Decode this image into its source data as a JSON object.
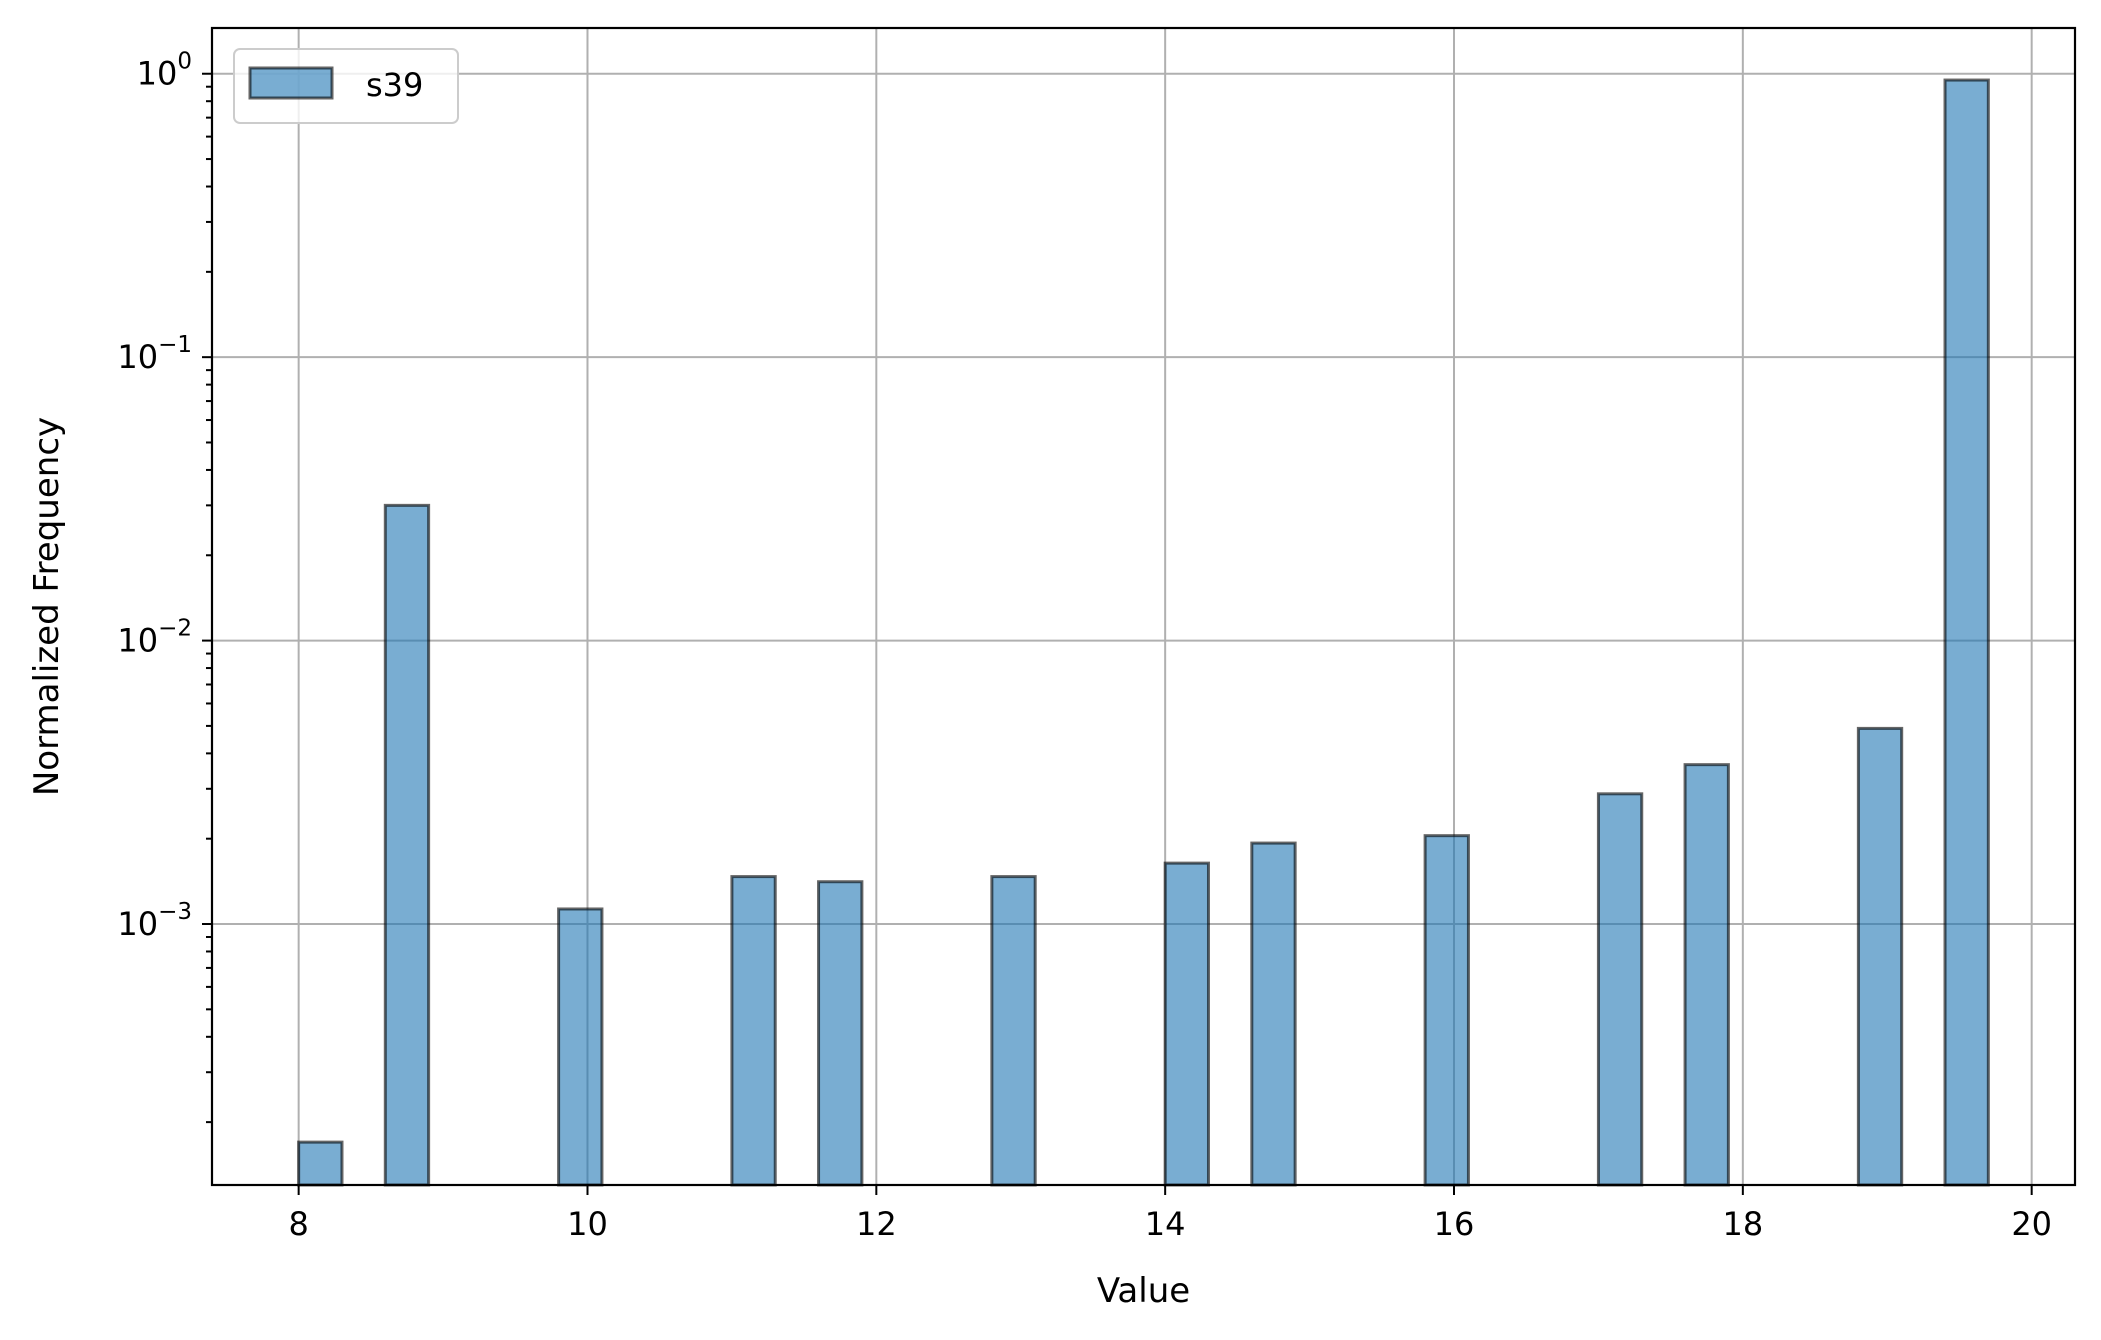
{
  "chart_data": {
    "type": "bar",
    "histogram": true,
    "xlabel": "Value",
    "ylabel": "Normalized Frequency",
    "yscale": "log",
    "xlim": [
      7.4,
      20.3
    ],
    "ylim": [
      0.00012,
      1.45
    ],
    "grid": true,
    "legend": {
      "placement": "top-left",
      "entries": [
        "s39"
      ]
    },
    "x_ticks": [
      "8",
      "10",
      "12",
      "14",
      "16",
      "18",
      "20"
    ],
    "x_tick_values": [
      8,
      10,
      12,
      14,
      16,
      18,
      20
    ],
    "y_ticks": [
      {
        "base": "10",
        "exp": "0",
        "value": 1
      },
      {
        "base": "10",
        "exp": "−1",
        "value": 0.1
      },
      {
        "base": "10",
        "exp": "−2",
        "value": 0.01
      },
      {
        "base": "10",
        "exp": "−3",
        "value": 0.001
      }
    ],
    "series": [
      {
        "name": "s39",
        "color": "#1f77b4",
        "bins": [
          {
            "x0": 8.0,
            "x1": 8.3,
            "value": 0.00017
          },
          {
            "x0": 8.6,
            "x1": 8.9,
            "value": 0.03
          },
          {
            "x0": 9.8,
            "x1": 10.1,
            "value": 0.00113
          },
          {
            "x0": 11.0,
            "x1": 11.3,
            "value": 0.00147
          },
          {
            "x0": 11.6,
            "x1": 11.9,
            "value": 0.00141
          },
          {
            "x0": 12.8,
            "x1": 13.1,
            "value": 0.00147
          },
          {
            "x0": 14.0,
            "x1": 14.3,
            "value": 0.00164
          },
          {
            "x0": 14.6,
            "x1": 14.9,
            "value": 0.00193
          },
          {
            "x0": 15.8,
            "x1": 16.1,
            "value": 0.00205
          },
          {
            "x0": 17.0,
            "x1": 17.3,
            "value": 0.00288
          },
          {
            "x0": 17.6,
            "x1": 17.9,
            "value": 0.00365
          },
          {
            "x0": 18.8,
            "x1": 19.1,
            "value": 0.0049
          },
          {
            "x0": 19.4,
            "x1": 19.7,
            "value": 0.95
          }
        ]
      }
    ]
  }
}
